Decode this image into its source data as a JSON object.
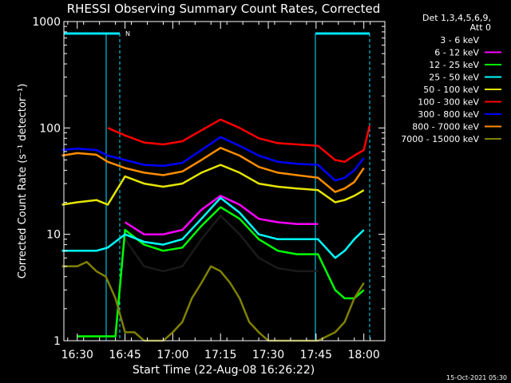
{
  "chart_data": {
    "type": "line",
    "title": "RHESSI Observing Summary Count Rates, Corrected",
    "xlabel": "Start Time (22-Aug-08 16:26:22)",
    "ylabel": "Corrected Count Rate (s⁻¹ detector⁻¹)",
    "yscale": "log",
    "ylim": [
      1,
      1000
    ],
    "xlim_minutes": [
      16.43,
      18.11
    ],
    "x_tick_labels": [
      "16:30",
      "16:45",
      "17:00",
      "17:15",
      "17:30",
      "17:45",
      "18:00"
    ],
    "x_ticks_hours": [
      16.5,
      16.75,
      17.0,
      17.25,
      17.5,
      17.75,
      18.0
    ],
    "y_tick_labels": [
      "1",
      "10",
      "100",
      "1000"
    ],
    "y_ticks": [
      1,
      10,
      100,
      1000
    ],
    "legend_header": [
      "Det 1,3,4,5,6,9,",
      "Att 0"
    ],
    "legend_position": "top-right",
    "footer": "15-Oct-2021 05:30",
    "flag_label": "N",
    "colors": {
      "axis": "#ffffff",
      "flag": "#00e5ff"
    },
    "series": [
      {
        "name": "3 - 6 keV",
        "color": "#000000",
        "x": [
          16.75,
          16.85,
          16.95,
          17.05,
          17.15,
          17.25,
          17.35,
          17.45,
          17.55,
          17.65,
          17.76
        ],
        "values": [
          9,
          5,
          4.5,
          5,
          9,
          15,
          10,
          6,
          4.8,
          4.5,
          4.5
        ]
      },
      {
        "name": "6 - 12 keV",
        "color": "#ff00ff",
        "x": [
          16.75,
          16.85,
          16.95,
          17.05,
          17.15,
          17.25,
          17.35,
          17.45,
          17.55,
          17.65,
          17.76
        ],
        "values": [
          13,
          10,
          10,
          11,
          17,
          23,
          19,
          14,
          13,
          12.5,
          12.5
        ]
      },
      {
        "name": "12 - 25 keV",
        "color": "#00ff00",
        "x": [
          16.5,
          16.55,
          16.6,
          16.65,
          16.7,
          16.75,
          16.85,
          16.95,
          17.05,
          17.15,
          17.25,
          17.35,
          17.45,
          17.55,
          17.65,
          17.76,
          17.85,
          17.9,
          17.95,
          18.0
        ],
        "values": [
          1.1,
          1.1,
          1.1,
          1.1,
          1.1,
          11,
          8,
          7,
          7.5,
          12,
          18,
          14,
          9,
          7,
          6.5,
          6.5,
          3,
          2.5,
          2.5,
          3
        ]
      },
      {
        "name": "25 - 50 keV",
        "color": "#00ffff",
        "x": [
          16.42,
          16.5,
          16.6,
          16.66,
          16.75,
          16.85,
          16.95,
          17.05,
          17.15,
          17.25,
          17.35,
          17.45,
          17.55,
          17.65,
          17.76,
          17.85,
          17.9,
          17.95,
          18.0
        ],
        "values": [
          7,
          7,
          7,
          7.5,
          10,
          8.5,
          8,
          9,
          14,
          22,
          16,
          10,
          9,
          9,
          9,
          6,
          7,
          9,
          11
        ]
      },
      {
        "name": "50 - 100 keV",
        "color": "#e6e600",
        "x": [
          16.42,
          16.5,
          16.6,
          16.66,
          16.75,
          16.85,
          16.95,
          17.05,
          17.15,
          17.25,
          17.35,
          17.45,
          17.55,
          17.65,
          17.76,
          17.85,
          17.9,
          17.95,
          18.0
        ],
        "values": [
          19,
          20,
          21,
          19,
          35,
          30,
          28,
          30,
          38,
          45,
          38,
          30,
          28,
          27,
          26,
          20,
          21,
          23,
          26
        ]
      },
      {
        "name": "100 - 300 keV",
        "color": "#ff0000",
        "x": [
          16.66,
          16.75,
          16.85,
          16.95,
          17.05,
          17.15,
          17.25,
          17.35,
          17.45,
          17.55,
          17.65,
          17.76,
          17.85,
          17.9,
          17.95,
          18.0,
          18.03
        ],
        "values": [
          100,
          85,
          73,
          70,
          75,
          95,
          120,
          100,
          80,
          72,
          70,
          68,
          50,
          48,
          55,
          62,
          105
        ]
      },
      {
        "name": "300 - 800 keV",
        "color": "#0000ff",
        "x": [
          16.42,
          16.5,
          16.6,
          16.66,
          16.75,
          16.85,
          16.95,
          17.05,
          17.15,
          17.25,
          17.35,
          17.45,
          17.55,
          17.65,
          17.76,
          17.85,
          17.9,
          17.95,
          18.0
        ],
        "values": [
          62,
          64,
          62,
          55,
          50,
          45,
          44,
          47,
          62,
          82,
          68,
          55,
          48,
          46,
          45,
          32,
          34,
          40,
          52
        ]
      },
      {
        "name": "800 - 7000 keV",
        "color": "#ff8c00",
        "x": [
          16.42,
          16.5,
          16.6,
          16.66,
          16.75,
          16.85,
          16.95,
          17.05,
          17.15,
          17.25,
          17.35,
          17.45,
          17.55,
          17.65,
          17.76,
          17.85,
          17.9,
          17.95,
          18.0
        ],
        "values": [
          55,
          58,
          56,
          48,
          42,
          38,
          36,
          39,
          50,
          65,
          55,
          43,
          38,
          36,
          34,
          25,
          27,
          31,
          42
        ]
      },
      {
        "name": "7000 - 15000 keV",
        "color": "#808000",
        "x": [
          16.42,
          16.5,
          16.55,
          16.6,
          16.65,
          16.7,
          16.75,
          16.8,
          16.85,
          16.9,
          16.95,
          17.0,
          17.05,
          17.1,
          17.15,
          17.2,
          17.25,
          17.3,
          17.35,
          17.4,
          17.45,
          17.5,
          17.55,
          17.76,
          17.85,
          17.9,
          17.95,
          18.0
        ],
        "values": [
          5,
          5,
          5.5,
          4.5,
          4,
          2.5,
          1.2,
          1.2,
          1,
          1,
          1,
          1.2,
          1.5,
          2.5,
          3.5,
          5,
          4.5,
          3.5,
          2.5,
          1.5,
          1.2,
          1,
          1,
          1,
          1.2,
          1.5,
          2.5,
          3.5
        ]
      }
    ]
  }
}
